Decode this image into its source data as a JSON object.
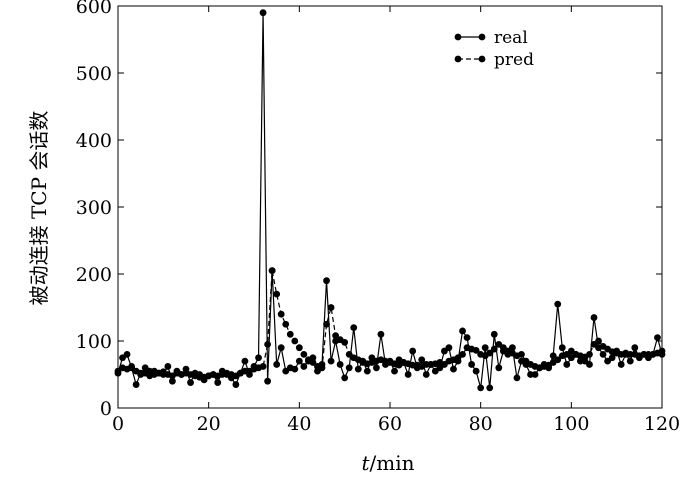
{
  "chart_data": {
    "type": "line",
    "title": "",
    "xlabel_italic": "t",
    "xlabel_unit": "/min",
    "ylabel": "被动连接 TCP 会话数",
    "xlim": [
      0,
      120
    ],
    "ylim": [
      0,
      600
    ],
    "xticks": [
      0,
      20,
      40,
      60,
      80,
      100,
      120
    ],
    "yticks": [
      0,
      100,
      200,
      300,
      400,
      500,
      600
    ],
    "grid": false,
    "legend_position": "top-right",
    "series": [
      {
        "name": "real",
        "line_style": "solid",
        "marker": "circle",
        "x": [
          0,
          1,
          2,
          3,
          4,
          5,
          6,
          7,
          8,
          9,
          10,
          11,
          12,
          13,
          14,
          15,
          16,
          17,
          18,
          19,
          20,
          21,
          22,
          23,
          24,
          25,
          26,
          27,
          28,
          29,
          30,
          31,
          32,
          33,
          34,
          35,
          36,
          37,
          38,
          39,
          40,
          41,
          42,
          43,
          44,
          45,
          46,
          47,
          48,
          49,
          50,
          51,
          52,
          53,
          54,
          55,
          56,
          57,
          58,
          59,
          60,
          61,
          62,
          63,
          64,
          65,
          66,
          67,
          68,
          69,
          70,
          71,
          72,
          73,
          74,
          75,
          76,
          77,
          78,
          79,
          80,
          81,
          82,
          83,
          84,
          85,
          86,
          87,
          88,
          89,
          90,
          91,
          92,
          93,
          94,
          95,
          96,
          97,
          98,
          99,
          100,
          101,
          102,
          103,
          104,
          105,
          106,
          107,
          108,
          109,
          110,
          111,
          112,
          113,
          114,
          115,
          116,
          117,
          118,
          119,
          120
        ],
        "y": [
          52,
          75,
          80,
          60,
          35,
          52,
          60,
          48,
          55,
          52,
          50,
          62,
          40,
          55,
          50,
          58,
          38,
          52,
          46,
          42,
          48,
          50,
          38,
          55,
          50,
          45,
          35,
          52,
          70,
          50,
          62,
          75,
          590,
          40,
          205,
          65,
          90,
          55,
          60,
          58,
          70,
          62,
          70,
          75,
          55,
          65,
          190,
          70,
          100,
          65,
          45,
          60,
          120,
          58,
          70,
          55,
          75,
          60,
          110,
          65,
          70,
          55,
          72,
          68,
          50,
          85,
          60,
          72,
          50,
          65,
          55,
          60,
          85,
          90,
          58,
          70,
          115,
          105,
          65,
          55,
          30,
          90,
          30,
          110,
          60,
          85,
          80,
          90,
          45,
          70,
          65,
          50,
          50,
          60,
          65,
          60,
          78,
          155,
          90,
          65,
          75,
          80,
          70,
          70,
          65,
          135,
          90,
          80,
          70,
          75,
          85,
          65,
          80,
          70,
          90,
          75,
          80,
          75,
          80,
          105,
          80
        ]
      },
      {
        "name": "pred",
        "line_style": "dashed",
        "marker": "circle",
        "x": [
          0,
          1,
          2,
          3,
          4,
          5,
          6,
          7,
          8,
          9,
          10,
          11,
          12,
          13,
          14,
          15,
          16,
          17,
          18,
          19,
          20,
          21,
          22,
          23,
          24,
          25,
          26,
          27,
          28,
          29,
          30,
          31,
          32,
          33,
          34,
          35,
          36,
          37,
          38,
          39,
          40,
          41,
          42,
          43,
          44,
          45,
          46,
          47,
          48,
          49,
          50,
          51,
          52,
          53,
          54,
          55,
          56,
          57,
          58,
          59,
          60,
          61,
          62,
          63,
          64,
          65,
          66,
          67,
          68,
          69,
          70,
          71,
          72,
          73,
          74,
          75,
          76,
          77,
          78,
          79,
          80,
          81,
          82,
          83,
          84,
          85,
          86,
          87,
          88,
          89,
          90,
          91,
          92,
          93,
          94,
          95,
          96,
          97,
          98,
          99,
          100,
          101,
          102,
          103,
          104,
          105,
          106,
          107,
          108,
          109,
          110,
          111,
          112,
          113,
          114,
          115,
          116,
          117,
          118,
          119,
          120
        ],
        "y": [
          55,
          60,
          58,
          62,
          55,
          50,
          52,
          55,
          50,
          52,
          54,
          50,
          48,
          52,
          50,
          52,
          50,
          48,
          50,
          46,
          48,
          50,
          48,
          50,
          52,
          50,
          48,
          52,
          55,
          55,
          58,
          60,
          62,
          95,
          205,
          170,
          140,
          125,
          110,
          100,
          90,
          80,
          72,
          68,
          62,
          60,
          125,
          150,
          108,
          102,
          98,
          80,
          75,
          72,
          68,
          66,
          68,
          70,
          72,
          70,
          68,
          66,
          64,
          68,
          66,
          64,
          64,
          62,
          65,
          65,
          66,
          68,
          65,
          70,
          72,
          75,
          80,
          90,
          88,
          86,
          80,
          78,
          82,
          88,
          95,
          90,
          85,
          82,
          78,
          80,
          70,
          65,
          62,
          60,
          62,
          64,
          68,
          72,
          78,
          80,
          85,
          80,
          78,
          76,
          80,
          95,
          100,
          92,
          88,
          84,
          82,
          80,
          82,
          80,
          80,
          78,
          80,
          80,
          80,
          82,
          85
        ]
      }
    ]
  }
}
